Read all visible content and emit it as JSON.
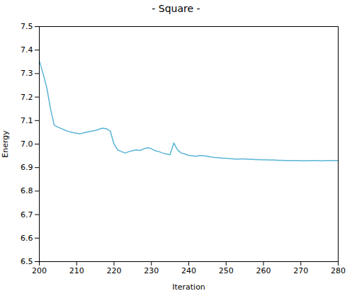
{
  "chart_data": {
    "type": "line",
    "title": "- Square -",
    "xlabel": "Iteration",
    "ylabel": "Energy",
    "x": [
      200,
      201,
      202,
      203,
      204,
      205,
      206,
      207,
      208,
      209,
      210,
      211,
      212,
      213,
      214,
      215,
      216,
      217,
      218,
      219,
      220,
      221,
      222,
      223,
      224,
      225,
      226,
      227,
      228,
      229,
      230,
      231,
      232,
      233,
      234,
      235,
      236,
      237,
      238,
      239,
      240,
      241,
      242,
      243,
      244,
      245,
      246,
      247,
      248,
      249,
      250,
      251,
      252,
      253,
      254,
      255,
      256,
      257,
      258,
      259,
      260,
      261,
      262,
      263,
      264,
      265,
      266,
      267,
      268,
      269,
      270,
      271,
      272,
      273,
      274,
      275,
      276,
      277,
      278,
      279,
      280
    ],
    "values": [
      7.355,
      7.3,
      7.24,
      7.15,
      7.08,
      7.072,
      7.065,
      7.058,
      7.053,
      7.049,
      7.046,
      7.044,
      7.048,
      7.052,
      7.055,
      7.058,
      7.063,
      7.068,
      7.065,
      7.055,
      7.0,
      6.975,
      6.968,
      6.962,
      6.968,
      6.972,
      6.975,
      6.973,
      6.98,
      6.985,
      6.98,
      6.972,
      6.968,
      6.962,
      6.958,
      6.955,
      7.005,
      6.975,
      6.962,
      6.958,
      6.952,
      6.95,
      6.948,
      6.952,
      6.95,
      6.948,
      6.945,
      6.943,
      6.942,
      6.94,
      6.94,
      6.938,
      6.937,
      6.936,
      6.937,
      6.937,
      6.935,
      6.935,
      6.934,
      6.934,
      6.933,
      6.933,
      6.932,
      6.932,
      6.931,
      6.931,
      6.93,
      6.93,
      6.93,
      6.93,
      6.929,
      6.929,
      6.929,
      6.93,
      6.93,
      6.929,
      6.929,
      6.93,
      6.93,
      6.93,
      6.93
    ],
    "color": "#5ab4d6",
    "xlim": [
      200,
      280
    ],
    "ylim": [
      6.5,
      7.5
    ],
    "xticks": [
      200,
      210,
      220,
      230,
      240,
      250,
      260,
      270,
      280
    ],
    "yticks": [
      6.5,
      6.6,
      6.7,
      6.8,
      6.9,
      {
        "value": 7.0,
        "label": "7.0"
      },
      7.1,
      7.2,
      7.3,
      7.4,
      7.5
    ],
    "grid": false
  }
}
